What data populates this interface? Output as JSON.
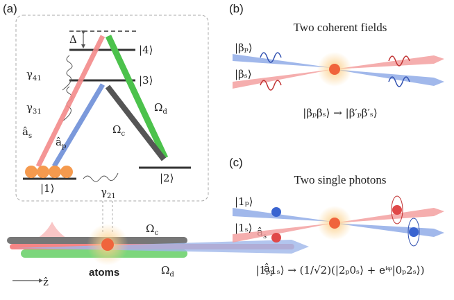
{
  "panel_a": {
    "label": "(a)",
    "delta": "Δ",
    "levels": [
      "|1⟩",
      "|2⟩",
      "|3⟩",
      "|4⟩"
    ],
    "gammas": [
      {
        "symbol": "γ",
        "sub": "41"
      },
      {
        "symbol": "γ",
        "sub": "31"
      },
      {
        "symbol": "γ",
        "sub": "21"
      }
    ],
    "fields": {
      "a_s": {
        "symbol": "â",
        "sub": "s"
      },
      "a_p": {
        "symbol": "â",
        "sub": "p"
      },
      "omega_c": {
        "symbol": "Ω",
        "sub": "c"
      },
      "omega_d": {
        "symbol": "Ω",
        "sub": "d"
      }
    },
    "bottom": {
      "omega_c": {
        "symbol": "Ω",
        "sub": "c"
      },
      "a_s": {
        "symbol": "â",
        "sub": "s"
      },
      "omega_d": {
        "symbol": "Ω",
        "sub": "d"
      },
      "a_p": {
        "symbol": "â",
        "sub": "p"
      },
      "z": "ẑ",
      "atoms": "atoms"
    }
  },
  "panel_b": {
    "label": "(b)",
    "title": "Two coherent fields",
    "inputs": [
      "|βₚ⟩",
      "|βₛ⟩"
    ],
    "equation": "|βₚβₛ⟩  →  |β′ₚβ′ₛ⟩"
  },
  "panel_c": {
    "label": "(c)",
    "title": "Two single photons",
    "inputs": [
      "|1ₚ⟩",
      "|1ₛ⟩"
    ],
    "equation": "|1ₚ1ₛ⟩  →  (1/√2)(|2ₚ0ₛ⟩ + eⁱᵠ|0ₚ2ₛ⟩)"
  }
}
